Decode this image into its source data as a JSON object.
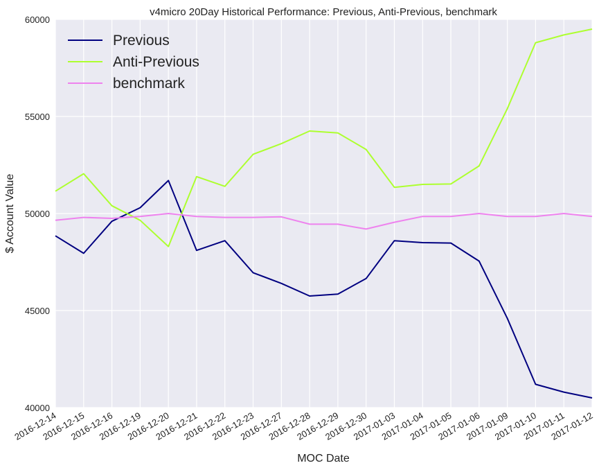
{
  "chart_data": {
    "type": "line",
    "title": "v4micro 20Day Historical Performance: Previous, Anti-Previous, benchmark",
    "xlabel": "MOC Date",
    "ylabel": "$ Account Value",
    "ylim": [
      40000,
      60000
    ],
    "yticks": [
      40000,
      45000,
      50000,
      55000,
      60000
    ],
    "grid": true,
    "legend_position": "top-left",
    "background_color": "#eaeaf2",
    "categories": [
      "2016-12-14",
      "2016-12-15",
      "2016-12-16",
      "2016-12-19",
      "2016-12-20",
      "2016-12-21",
      "2016-12-22",
      "2016-12-23",
      "2016-12-27",
      "2016-12-28",
      "2016-12-29",
      "2016-12-30",
      "2017-01-03",
      "2017-01-04",
      "2017-01-05",
      "2017-01-06",
      "2017-01-09",
      "2017-01-10",
      "2017-01-11",
      "2017-01-12"
    ],
    "series": [
      {
        "name": "Previous",
        "color": "#000080",
        "values": [
          48850,
          47950,
          49600,
          50300,
          51700,
          48100,
          48600,
          46950,
          46400,
          45750,
          45850,
          46650,
          48600,
          48500,
          48480,
          47550,
          44600,
          41200,
          40800,
          40500
        ]
      },
      {
        "name": "Anti-Previous",
        "color": "#adff2f",
        "values": [
          51150,
          52050,
          50400,
          49650,
          48300,
          51900,
          51400,
          53050,
          53600,
          54250,
          54150,
          53300,
          51350,
          51500,
          51520,
          52450,
          55400,
          58800,
          59200,
          59500
        ]
      },
      {
        "name": "benchmark",
        "color": "#ee82ee",
        "values": [
          49650,
          49800,
          49750,
          49850,
          50000,
          49850,
          49800,
          49800,
          49830,
          49450,
          49450,
          49200,
          49550,
          49850,
          49850,
          50000,
          49850,
          49850,
          50000,
          49850
        ]
      }
    ]
  }
}
